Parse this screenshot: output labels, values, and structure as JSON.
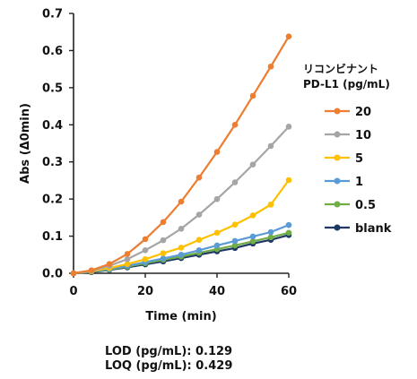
{
  "chart_data": {
    "type": "line",
    "xlabel": "Time (min)",
    "ylabel": "Abs (Δ0min)",
    "xlim": [
      0,
      60
    ],
    "ylim": [
      0,
      0.7
    ],
    "xticks": [
      "0",
      "20",
      "40",
      "60"
    ],
    "yticks": [
      "0.0",
      "0.1",
      "0.2",
      "0.3",
      "0.4",
      "0.5",
      "0.6",
      "0.7"
    ],
    "grid": false,
    "legend_title": [
      "リコンビナント",
      "PD-L1 (pg/mL)"
    ],
    "legend_position": "right",
    "x": [
      0,
      5,
      10,
      15,
      20,
      25,
      30,
      35,
      40,
      45,
      50,
      55,
      60
    ],
    "series": [
      {
        "name": "20",
        "color": "#ED7D31",
        "values": [
          0.0,
          0.008,
          0.025,
          0.052,
          0.092,
          0.138,
          0.193,
          0.258,
          0.327,
          0.4,
          0.478,
          0.557,
          0.638
        ]
      },
      {
        "name": "10",
        "color": "#A5A5A5",
        "values": [
          0.0,
          0.007,
          0.02,
          0.038,
          0.062,
          0.089,
          0.12,
          0.158,
          0.2,
          0.245,
          0.293,
          0.343,
          0.395
        ]
      },
      {
        "name": "5",
        "color": "#FFC000",
        "values": [
          0.0,
          0.006,
          0.014,
          0.025,
          0.038,
          0.054,
          0.069,
          0.09,
          0.109,
          0.131,
          0.156,
          0.185,
          0.251
        ]
      },
      {
        "name": "1",
        "color": "#5B9BD5",
        "values": [
          0.0,
          0.005,
          0.011,
          0.02,
          0.03,
          0.04,
          0.05,
          0.062,
          0.075,
          0.087,
          0.099,
          0.111,
          0.13
        ]
      },
      {
        "name": "0.5",
        "color": "#70AD47",
        "values": [
          0.0,
          0.004,
          0.01,
          0.018,
          0.027,
          0.036,
          0.045,
          0.055,
          0.065,
          0.075,
          0.086,
          0.097,
          0.109
        ]
      },
      {
        "name": "blank",
        "color": "#1F3864",
        "values": [
          0.0,
          0.003,
          0.009,
          0.016,
          0.024,
          0.032,
          0.041,
          0.05,
          0.059,
          0.068,
          0.08,
          0.09,
          0.103
        ]
      }
    ]
  },
  "footer": {
    "lod": "LOD (pg/mL): 0.129",
    "loq": "LOQ (pg/mL): 0.429"
  }
}
